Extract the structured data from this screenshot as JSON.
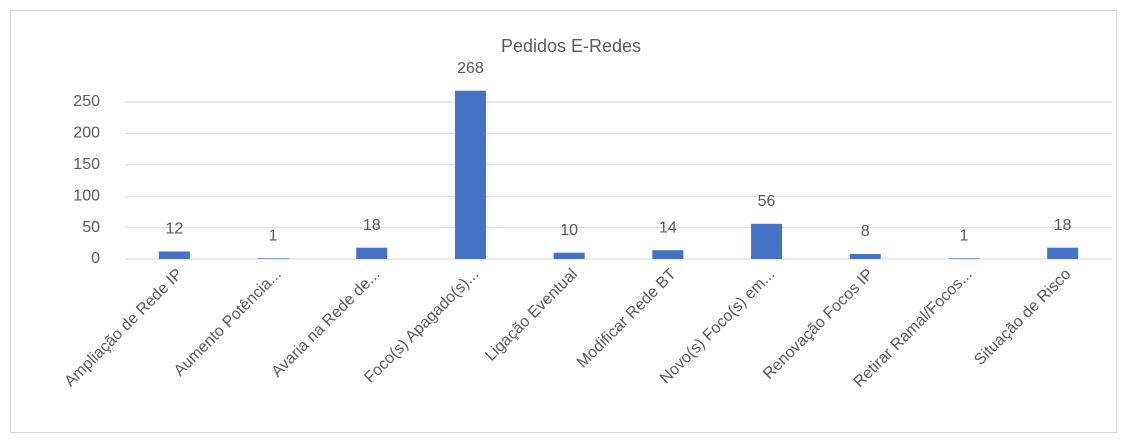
{
  "chart_data": {
    "type": "bar",
    "title": "Pedidos E-Redes",
    "categories": [
      "Ampliação de Rede IP",
      "Aumento Potência...",
      "Avaria na Rede de...",
      "Foco(s) Apagado(s)...",
      "Ligação Eventual",
      "Modificar Rede BT",
      "Novo(s) Foco(s) em...",
      "Renovação Focos IP",
      "Retirar Ramal/Focos...",
      "Situação de Risco"
    ],
    "values": [
      12,
      1,
      18,
      268,
      10,
      14,
      56,
      8,
      1,
      18
    ],
    "color": "#4472c4",
    "ylim": [
      0,
      250
    ],
    "yticks": [
      0,
      50,
      100,
      150,
      200,
      250
    ],
    "grid": true
  }
}
